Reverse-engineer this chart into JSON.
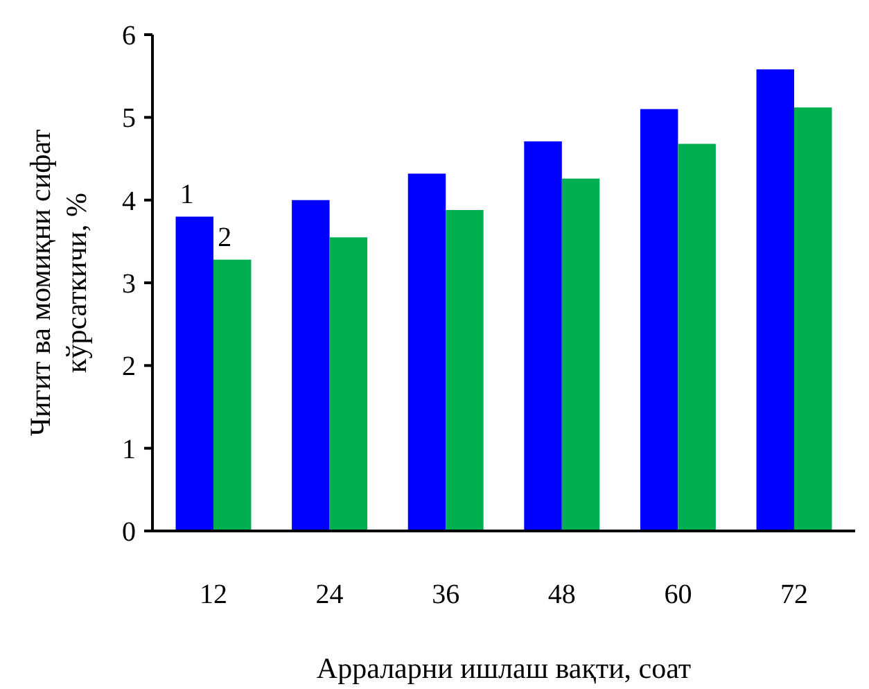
{
  "chart_data": {
    "type": "bar",
    "xlabel": "Арраларни ишлаш вақти, соат",
    "ylabel": "Чигит ва момиқни сифат\nкўрсаткичи, %",
    "categories": [
      "12",
      "24",
      "36",
      "48",
      "60",
      "72"
    ],
    "series": [
      {
        "name": "1",
        "color": "#0000ff",
        "values": [
          3.8,
          4.0,
          4.32,
          4.71,
          5.1,
          5.58
        ]
      },
      {
        "name": "2",
        "color": "#00b050",
        "values": [
          3.28,
          3.55,
          3.88,
          4.26,
          4.68,
          5.12
        ]
      }
    ],
    "ylim": [
      0,
      6
    ],
    "yticks": [
      0,
      1,
      2,
      3,
      4,
      5,
      6
    ],
    "grid": false
  }
}
